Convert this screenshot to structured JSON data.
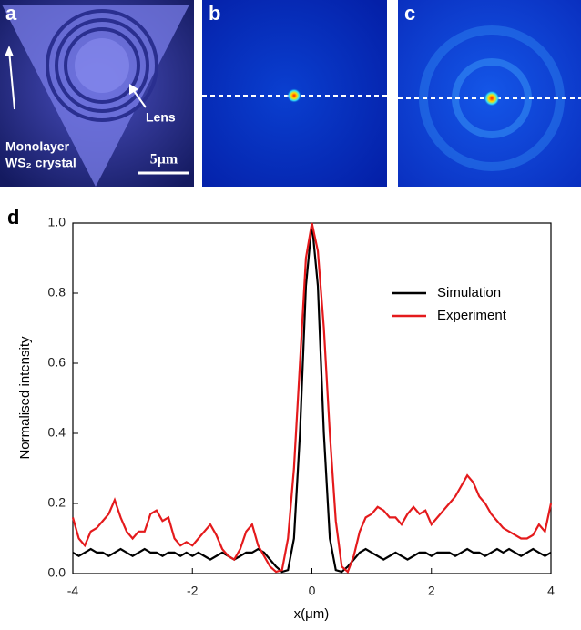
{
  "panels": {
    "a": {
      "label": "a",
      "annotation_1": "Monolayer",
      "annotation_2": "WS₂ crystal",
      "annotation_3": "Lens",
      "scale_bar": "5μm"
    },
    "b": {
      "label": "b"
    },
    "c": {
      "label": "c"
    }
  },
  "chart_data": {
    "type": "line",
    "panel_label": "d",
    "xlabel": "x(μm)",
    "ylabel": "Normalised intensity",
    "x": [
      -4,
      -3.9,
      -3.8,
      -3.7,
      -3.6,
      -3.5,
      -3.4,
      -3.3,
      -3.2,
      -3.1,
      -3,
      -2.9,
      -2.8,
      -2.7,
      -2.6,
      -2.5,
      -2.4,
      -2.3,
      -2.2,
      -2.1,
      -2,
      -1.9,
      -1.8,
      -1.7,
      -1.6,
      -1.5,
      -1.4,
      -1.3,
      -1.2,
      -1.1,
      -1,
      -0.9,
      -0.8,
      -0.7,
      -0.6,
      -0.5,
      -0.4,
      -0.3,
      -0.2,
      -0.1,
      0,
      0.1,
      0.2,
      0.3,
      0.4,
      0.5,
      0.6,
      0.7,
      0.8,
      0.9,
      1,
      1.1,
      1.2,
      1.3,
      1.4,
      1.5,
      1.6,
      1.7,
      1.8,
      1.9,
      2,
      2.1,
      2.2,
      2.3,
      2.4,
      2.5,
      2.6,
      2.7,
      2.8,
      2.9,
      3,
      3.1,
      3.2,
      3.3,
      3.4,
      3.5,
      3.6,
      3.7,
      3.8,
      3.9,
      4
    ],
    "series": [
      {
        "name": "Simulation",
        "color": "#000000",
        "values": [
          0.06,
          0.05,
          0.06,
          0.07,
          0.06,
          0.06,
          0.05,
          0.06,
          0.07,
          0.06,
          0.05,
          0.06,
          0.07,
          0.06,
          0.06,
          0.05,
          0.06,
          0.06,
          0.05,
          0.06,
          0.05,
          0.06,
          0.05,
          0.04,
          0.05,
          0.06,
          0.05,
          0.04,
          0.05,
          0.06,
          0.06,
          0.07,
          0.06,
          0.04,
          0.02,
          0.005,
          0.01,
          0.1,
          0.4,
          0.82,
          1,
          0.82,
          0.4,
          0.1,
          0.01,
          0.005,
          0.02,
          0.04,
          0.06,
          0.07,
          0.06,
          0.05,
          0.04,
          0.05,
          0.06,
          0.05,
          0.04,
          0.05,
          0.06,
          0.06,
          0.05,
          0.06,
          0.06,
          0.06,
          0.05,
          0.06,
          0.07,
          0.06,
          0.06,
          0.05,
          0.06,
          0.07,
          0.06,
          0.07,
          0.06,
          0.05,
          0.06,
          0.07,
          0.06,
          0.05,
          0.06
        ]
      },
      {
        "name": "Experiment",
        "color": "#e41a1c",
        "values": [
          0.16,
          0.1,
          0.08,
          0.12,
          0.13,
          0.15,
          0.17,
          0.21,
          0.16,
          0.12,
          0.1,
          0.12,
          0.12,
          0.17,
          0.18,
          0.15,
          0.16,
          0.1,
          0.08,
          0.09,
          0.08,
          0.1,
          0.12,
          0.14,
          0.11,
          0.07,
          0.05,
          0.04,
          0.07,
          0.12,
          0.14,
          0.08,
          0.05,
          0.02,
          0.005,
          0.01,
          0.1,
          0.3,
          0.6,
          0.9,
          1,
          0.92,
          0.7,
          0.4,
          0.15,
          0.02,
          0.005,
          0.05,
          0.12,
          0.16,
          0.17,
          0.19,
          0.18,
          0.16,
          0.16,
          0.14,
          0.17,
          0.19,
          0.17,
          0.18,
          0.14,
          0.16,
          0.18,
          0.2,
          0.22,
          0.25,
          0.28,
          0.26,
          0.22,
          0.2,
          0.17,
          0.15,
          0.13,
          0.12,
          0.11,
          0.1,
          0.1,
          0.11,
          0.14,
          0.12,
          0.2
        ]
      }
    ],
    "xlim": [
      -4,
      4
    ],
    "xticks": [
      -4,
      -2,
      0,
      2,
      4
    ],
    "ylim": [
      0,
      1
    ],
    "yticks": [
      {
        "value": 0,
        "label": "0.0"
      },
      {
        "value": 0.2,
        "label": "0.2"
      },
      {
        "value": 0.4,
        "label": "0.4"
      },
      {
        "value": 0.6,
        "label": "0.6"
      },
      {
        "value": 0.8,
        "label": "0.8"
      },
      {
        "value": 1,
        "label": "1.0"
      }
    ],
    "legend": "upper right",
    "grid": false
  }
}
